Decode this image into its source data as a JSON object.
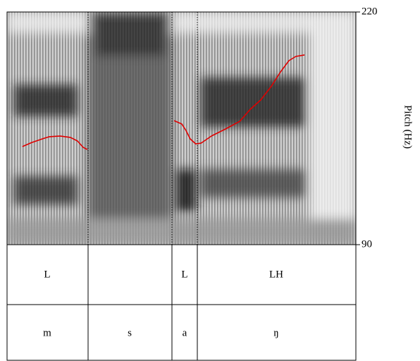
{
  "chart_data": {
    "type": "line",
    "y2label": "Pitch (Hz)",
    "y2lim": [
      90,
      220
    ],
    "y2ticks": [
      90,
      220
    ],
    "xlim": [
      0,
      1
    ],
    "x": [
      0.044,
      0.071,
      0.101,
      0.121,
      0.152,
      0.182,
      0.202,
      0.218,
      0.23,
      0.36,
      0.479,
      0.501,
      0.513,
      0.525,
      0.541,
      0.556,
      0.586,
      0.626,
      0.667,
      0.697,
      0.727,
      0.758,
      0.784,
      0.808,
      0.828,
      0.853
    ],
    "series": [
      {
        "color": "#e00000",
        "axis": "y2",
        "values": [
          144.8,
          147.1,
          149.1,
          150.3,
          150.7,
          149.9,
          147.9,
          144.4,
          143.2,
          null,
          159.3,
          157.4,
          153.8,
          149.1,
          146.3,
          146.7,
          150.7,
          154.6,
          158.9,
          165.6,
          170.8,
          178.6,
          186.5,
          192.8,
          195.2,
          196.0
        ]
      }
    ],
    "tiers": [
      {
        "labels": [
          "L",
          null,
          "L",
          "LH"
        ]
      },
      {
        "labels": [
          "m",
          "s",
          "a",
          "ŋ"
        ]
      }
    ]
  }
}
